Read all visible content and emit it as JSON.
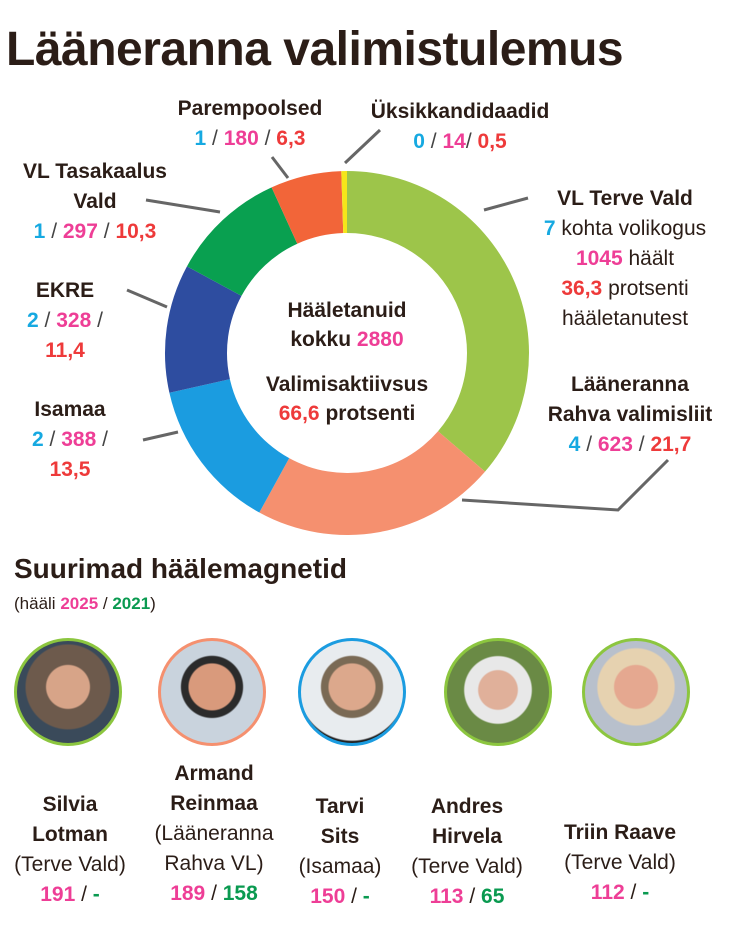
{
  "title": "Lääneranna valimistulemus",
  "colors": {
    "seats": "#16a9e1",
    "votes": "#ee3e96",
    "percent": "#ee3a3a",
    "votes2021": "#0a9a50"
  },
  "chart_data": {
    "type": "pie",
    "title": "Lääneranna valimistulemus",
    "donut": true,
    "series": [
      {
        "name": "VL Terve Vald",
        "seats": 7,
        "votes": 1045,
        "percent": 36.3,
        "color": "#9dc54a"
      },
      {
        "name": "Lääneranna Rahva valimisliit",
        "seats": 4,
        "votes": 623,
        "percent": 21.7,
        "color": "#f5906f"
      },
      {
        "name": "Isamaa",
        "seats": 2,
        "votes": 388,
        "percent": 13.5,
        "color": "#1b9ce0"
      },
      {
        "name": "EKRE",
        "seats": 2,
        "votes": 328,
        "percent": 11.4,
        "color": "#2e4da0"
      },
      {
        "name": "VL Tasakaalus Vald",
        "seats": 1,
        "votes": 297,
        "percent": 10.3,
        "color": "#09a050"
      },
      {
        "name": "Parempoolsed",
        "seats": 1,
        "votes": 180,
        "percent": 6.3,
        "color": "#f26539"
      },
      {
        "name": "Üksikkandidaadid",
        "seats": 0,
        "votes": 14,
        "percent": 0.5,
        "color": "#f5e61a"
      }
    ]
  },
  "labels": {
    "terve": {
      "name": "VL Terve Vald",
      "seats": "7",
      "seats_txt": "kohta volikogus",
      "votes": "1045",
      "votes_txt": "häält",
      "pct": "36,3",
      "pct_txt": "protsenti",
      "pct_txt2": "hääletanutest"
    },
    "rahva": {
      "name1": "Lääneranna",
      "name2": "Rahva valimisliit",
      "seats": "4",
      "votes": "623",
      "pct": "21,7"
    },
    "isamaa": {
      "name": "Isamaa",
      "seats": "2",
      "votes": "388",
      "pct": "13,5"
    },
    "ekre": {
      "name": "EKRE",
      "seats": "2",
      "votes": "328",
      "pct": "11,4"
    },
    "tasakaalus": {
      "name1": "VL Tasakaalus",
      "name2": "Vald",
      "seats": "1",
      "votes": "297",
      "pct": "10,3"
    },
    "parem": {
      "name": "Parempoolsed",
      "seats": "1",
      "votes": "180",
      "pct": "6,3"
    },
    "yksik": {
      "name": "Üksikkandidaadid",
      "seats": "0",
      "votes": "14",
      "pct": "0,5"
    }
  },
  "center": {
    "line1": "Hääletanuid",
    "line2": "kokku",
    "total": "2880",
    "line3": "Valimisaktiivsus",
    "turnout": "66,6",
    "line4": "protsenti"
  },
  "magnets": {
    "title": "Suurimad häälemagnetid",
    "sub_prefix": "(hääli",
    "year1": "2025",
    "year2": "2021",
    "sub_suffix": ")",
    "people": [
      {
        "name1": "Silvia",
        "name2": "Lotman",
        "party": "(Terve Vald)",
        "v2025": "191",
        "v2021": "-"
      },
      {
        "name1": "Armand",
        "name2": "Reinmaa",
        "party1": "(Lääneranna",
        "party2": "Rahva VL)",
        "v2025": "189",
        "v2021": "158"
      },
      {
        "name1": "Tarvi",
        "name2": "Sits",
        "party": "(Isamaa)",
        "v2025": "150",
        "v2021": "-"
      },
      {
        "name1": "Andres",
        "name2": "Hirvela",
        "party": "(Terve Vald)",
        "v2025": "113",
        "v2021": "65"
      },
      {
        "name1": "Triin Raave",
        "party": "(Terve Vald)",
        "v2025": "112",
        "v2021": "-"
      }
    ]
  }
}
